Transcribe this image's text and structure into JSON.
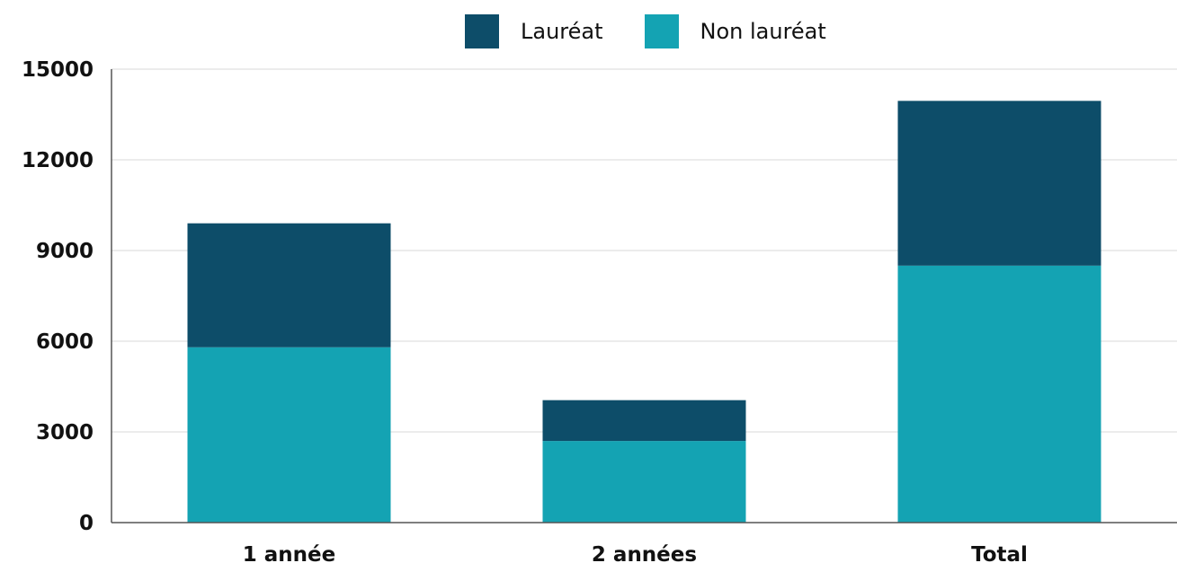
{
  "chart_data": {
    "type": "bar",
    "stacked": true,
    "categories": [
      "1 année",
      "2 années",
      "Total"
    ],
    "series": [
      {
        "name": "Non lauréat",
        "color": "#14a3b3",
        "values": [
          5800,
          2700,
          8500
        ]
      },
      {
        "name": "Lauréat",
        "color": "#0d4d69",
        "values": [
          4100,
          1350,
          5450
        ]
      }
    ],
    "ylim": [
      0,
      15000
    ],
    "yticks": [
      0,
      3000,
      6000,
      9000,
      12000,
      15000
    ],
    "grid": true,
    "legend_position": "top-center"
  },
  "legend": {
    "items": [
      {
        "label": "Lauréat",
        "color": "#0d4d69"
      },
      {
        "label": "Non lauréat",
        "color": "#14a3b3"
      }
    ]
  }
}
